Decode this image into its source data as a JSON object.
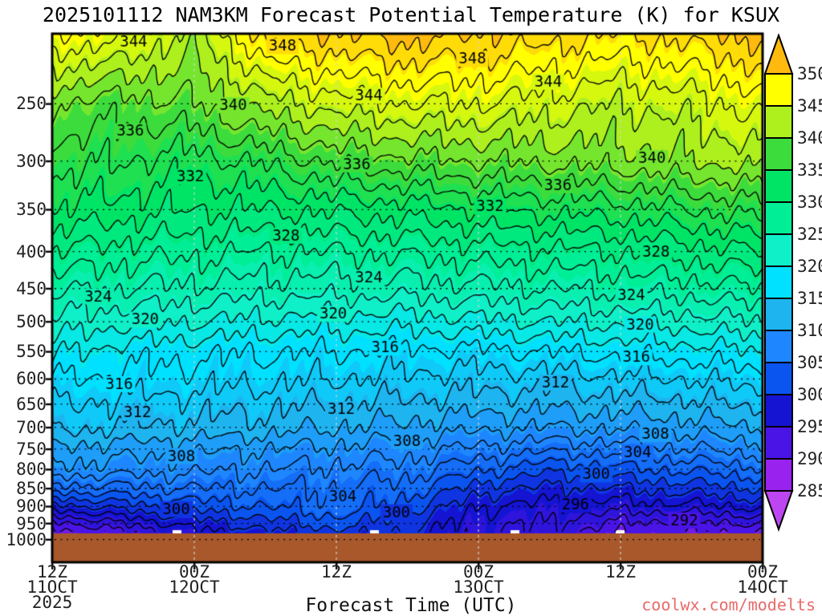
{
  "title": "2025101112 NAM3KM Forecast Potential Temperature (K) for KSUX",
  "watermark": "coolwx.com/modelts",
  "xaxis": {
    "title": "Forecast Time (UTC)",
    "ticks": [
      {
        "hour": 0,
        "lines": [
          "12Z",
          "11OCT",
          "2025"
        ]
      },
      {
        "hour": 12,
        "lines": [
          "00Z",
          "12OCT"
        ]
      },
      {
        "hour": 24,
        "lines": [
          "12Z"
        ]
      },
      {
        "hour": 36,
        "lines": [
          "00Z",
          "13OCT"
        ]
      },
      {
        "hour": 48,
        "lines": [
          "12Z"
        ]
      },
      {
        "hour": 60,
        "lines": [
          "00Z",
          "14OCT"
        ]
      }
    ]
  },
  "yaxis": {
    "pressure_ticks": [
      250,
      300,
      350,
      400,
      450,
      500,
      550,
      600,
      650,
      700,
      750,
      800,
      850,
      900,
      950,
      1000
    ],
    "scale": "log",
    "range_hpa": [
      200,
      1075
    ]
  },
  "colorbar": {
    "labels": [
      350,
      345,
      340,
      335,
      330,
      325,
      320,
      315,
      310,
      305,
      300,
      295,
      290,
      285
    ],
    "segment_colors": [
      "#9922EE",
      "#4A14E6",
      "#1414D2",
      "#0A55F0",
      "#1E87FF",
      "#1EB4F0",
      "#00E0FF",
      "#0FF0C8",
      "#00EE96",
      "#00E466",
      "#3CDC3C",
      "#ADF01E",
      "#FFFF00"
    ],
    "under_color": "#BE46F2",
    "over_color": "#FFB90F"
  },
  "grid": {
    "h_dot_color": "#000000",
    "v_dash_color": "#d2d2d2"
  },
  "chart_data": {
    "type": "contour",
    "title": "2025101112 NAM3KM Forecast Potential Temperature (K) for KSUX",
    "xlabel": "Forecast Time (UTC)",
    "x_start": "12Z 11OCT 2025",
    "x_end": "00Z 14OCT 2025",
    "x_hours": [
      0,
      6,
      12,
      18,
      24,
      30,
      36,
      42,
      48,
      54,
      60
    ],
    "pressure_levels_hpa": [
      200,
      250,
      300,
      350,
      400,
      450,
      500,
      550,
      600,
      650,
      700,
      750,
      800,
      850,
      900,
      950,
      1000
    ],
    "theta_grid_k": [
      [
        346,
        345,
        341,
        349,
        350,
        351,
        350,
        349,
        348,
        349,
        351
      ],
      [
        338,
        337,
        338,
        341,
        343,
        344,
        344,
        343,
        342,
        343,
        345
      ],
      [
        335,
        334,
        333,
        334.5,
        336.5,
        337.5,
        338,
        338.5,
        339,
        340,
        341
      ],
      [
        332,
        331,
        330,
        330,
        330.5,
        331,
        332,
        332.5,
        333,
        334,
        335
      ],
      [
        328,
        327,
        326.5,
        326,
        326,
        326.5,
        327,
        327.5,
        328,
        329,
        330
      ],
      [
        324.5,
        324,
        323.5,
        323,
        323,
        323,
        323.5,
        324,
        324.5,
        325,
        326
      ],
      [
        321.5,
        320.5,
        320,
        319.5,
        319,
        319,
        319.5,
        320,
        320.5,
        321,
        322
      ],
      [
        318.5,
        317,
        316.5,
        316,
        316,
        315.5,
        315.5,
        316,
        316.5,
        317,
        318
      ],
      [
        316,
        315.5,
        315,
        314.5,
        314,
        313.5,
        313,
        313,
        313.5,
        314,
        315
      ],
      [
        314,
        313.5,
        313,
        312.5,
        312,
        311.5,
        311,
        310.5,
        311,
        311.5,
        312.5
      ],
      [
        312.5,
        312,
        311.5,
        311,
        310,
        309.5,
        308.5,
        308,
        308.5,
        309,
        310
      ],
      [
        309.5,
        309,
        308.5,
        308,
        307.5,
        307,
        305.5,
        304.5,
        305,
        306,
        307
      ],
      [
        307.5,
        307,
        306.5,
        306,
        305.5,
        305,
        302.5,
        300.5,
        301.5,
        302.5,
        303.5
      ],
      [
        303,
        303.5,
        304,
        304,
        304,
        303,
        299,
        297.5,
        298,
        299,
        300
      ],
      [
        297,
        299,
        301,
        302,
        303.5,
        301,
        296,
        295.5,
        295,
        295.5,
        296.5
      ],
      [
        291,
        294,
        297,
        299,
        301,
        298.5,
        294.5,
        294,
        291.5,
        291.5,
        292
      ],
      [
        287,
        290,
        294,
        296,
        298,
        297,
        294,
        293,
        289,
        289.5,
        288
      ]
    ],
    "contour_interval_k": 2,
    "label_interval_k": 4,
    "surface_pressure_hpa": 985,
    "ground_color": "#A8582A"
  },
  "contour_labels": {
    "348": [
      0.32,
      0.585
    ],
    "344": [
      0.135,
      0.445,
      0.7
    ],
    "340": [
      0.255,
      0.845
    ],
    "336": [
      0.115,
      0.43,
      0.715
    ],
    "332": [
      0.195,
      0.615
    ],
    "328": [
      0.33,
      0.85
    ],
    "324": [
      0.07,
      0.445,
      0.815
    ],
    "320": [
      0.13,
      0.4,
      0.83
    ],
    "316": [
      0.095,
      0.475,
      0.82
    ],
    "312": [
      0.12,
      0.41,
      0.71
    ],
    "308": [
      0.185,
      0.5,
      0.845
    ],
    "304": [
      0.41,
      0.82
    ],
    "300": [
      0.18,
      0.475,
      0.76
    ],
    "296": [
      0.27,
      0.73
    ],
    "292": [
      0.875
    ]
  }
}
